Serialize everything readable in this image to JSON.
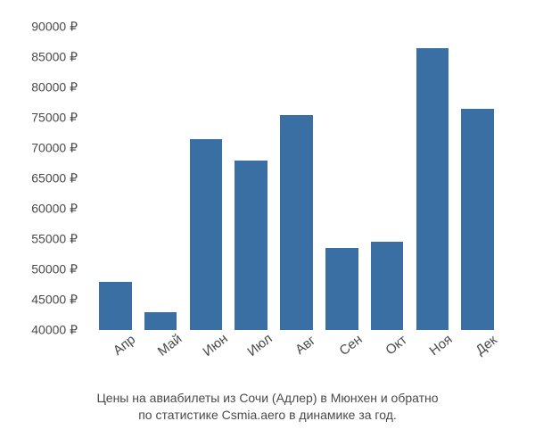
{
  "chart": {
    "type": "bar",
    "background_color": "#ffffff",
    "bar_color": "#3a6fa3",
    "text_color": "#4a4a4a",
    "axis_fontsize": 14,
    "xlabel_fontsize": 15,
    "xlabel_rotation": -38,
    "caption_fontsize": 14,
    "bar_width": 0.72,
    "ylim": [
      40000,
      90000
    ],
    "ytick_step": 5000,
    "y_suffix": " ₽",
    "y_ticks": [
      {
        "value": 40000,
        "label": "40000 ₽"
      },
      {
        "value": 45000,
        "label": "45000 ₽"
      },
      {
        "value": 50000,
        "label": "50000 ₽"
      },
      {
        "value": 55000,
        "label": "55000 ₽"
      },
      {
        "value": 60000,
        "label": "60000 ₽"
      },
      {
        "value": 65000,
        "label": "65000 ₽"
      },
      {
        "value": 70000,
        "label": "70000 ₽"
      },
      {
        "value": 75000,
        "label": "75000 ₽"
      },
      {
        "value": 80000,
        "label": "80000 ₽"
      },
      {
        "value": 85000,
        "label": "85000 ₽"
      },
      {
        "value": 90000,
        "label": "90000 ₽"
      }
    ],
    "categories": [
      "Апр",
      "Май",
      "Июн",
      "Июл",
      "Авг",
      "Сен",
      "Окт",
      "Ноя",
      "Дек"
    ],
    "values": [
      48000,
      43000,
      71500,
      68000,
      75500,
      53500,
      54500,
      86500,
      76500
    ],
    "caption_line1": "Цены на авиабилеты из Сочи (Адлер) в Мюнхен и обратно",
    "caption_line2": "по статистике Csmia.aero в динамике за год."
  }
}
